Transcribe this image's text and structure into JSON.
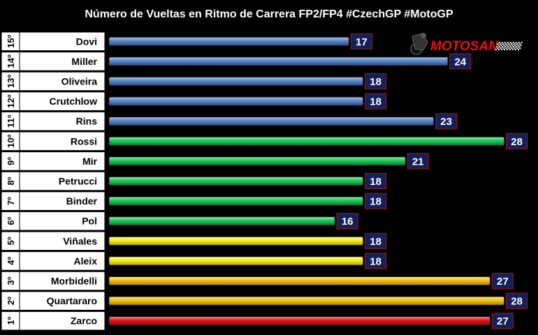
{
  "chart_data": {
    "type": "bar",
    "orientation": "horizontal",
    "title": "Número de Vueltas en Ritmo de Carrera FP2/FP4 #CzechGP #MotoGP",
    "categories": [
      "Dovi",
      "Miller",
      "Oliveira",
      "Crutchlow",
      "Rins",
      "Rossi",
      "Mir",
      "Petrucci",
      "Binder",
      "Pol",
      "Viñales",
      "Aleix",
      "Morbidelli",
      "Quartararo",
      "Zarco"
    ],
    "positions": [
      "15º",
      "14º",
      "13º",
      "12º",
      "11º",
      "10º",
      "9º",
      "8º",
      "7º",
      "6º",
      "5º",
      "4º",
      "3º",
      "2º",
      "1º"
    ],
    "values": [
      17,
      24,
      18,
      18,
      23,
      28,
      21,
      18,
      18,
      16,
      18,
      18,
      27,
      28,
      27
    ],
    "bar_colors": [
      "#5b86c4",
      "#5b86c4",
      "#5b86c4",
      "#5b86c4",
      "#5b86c4",
      "#1fc75b",
      "#1fc75b",
      "#1fc75b",
      "#1fc75b",
      "#1fc75b",
      "#f5ef1a",
      "#f5ef1a",
      "#f4c40f",
      "#f4c40f",
      "#e8151b"
    ],
    "label_box_color": "#14205a",
    "grid": false,
    "legend": "none",
    "xlim": [
      0,
      28
    ]
  },
  "logo": {
    "text": "MOTOSAN",
    "color": "#e8151b"
  }
}
